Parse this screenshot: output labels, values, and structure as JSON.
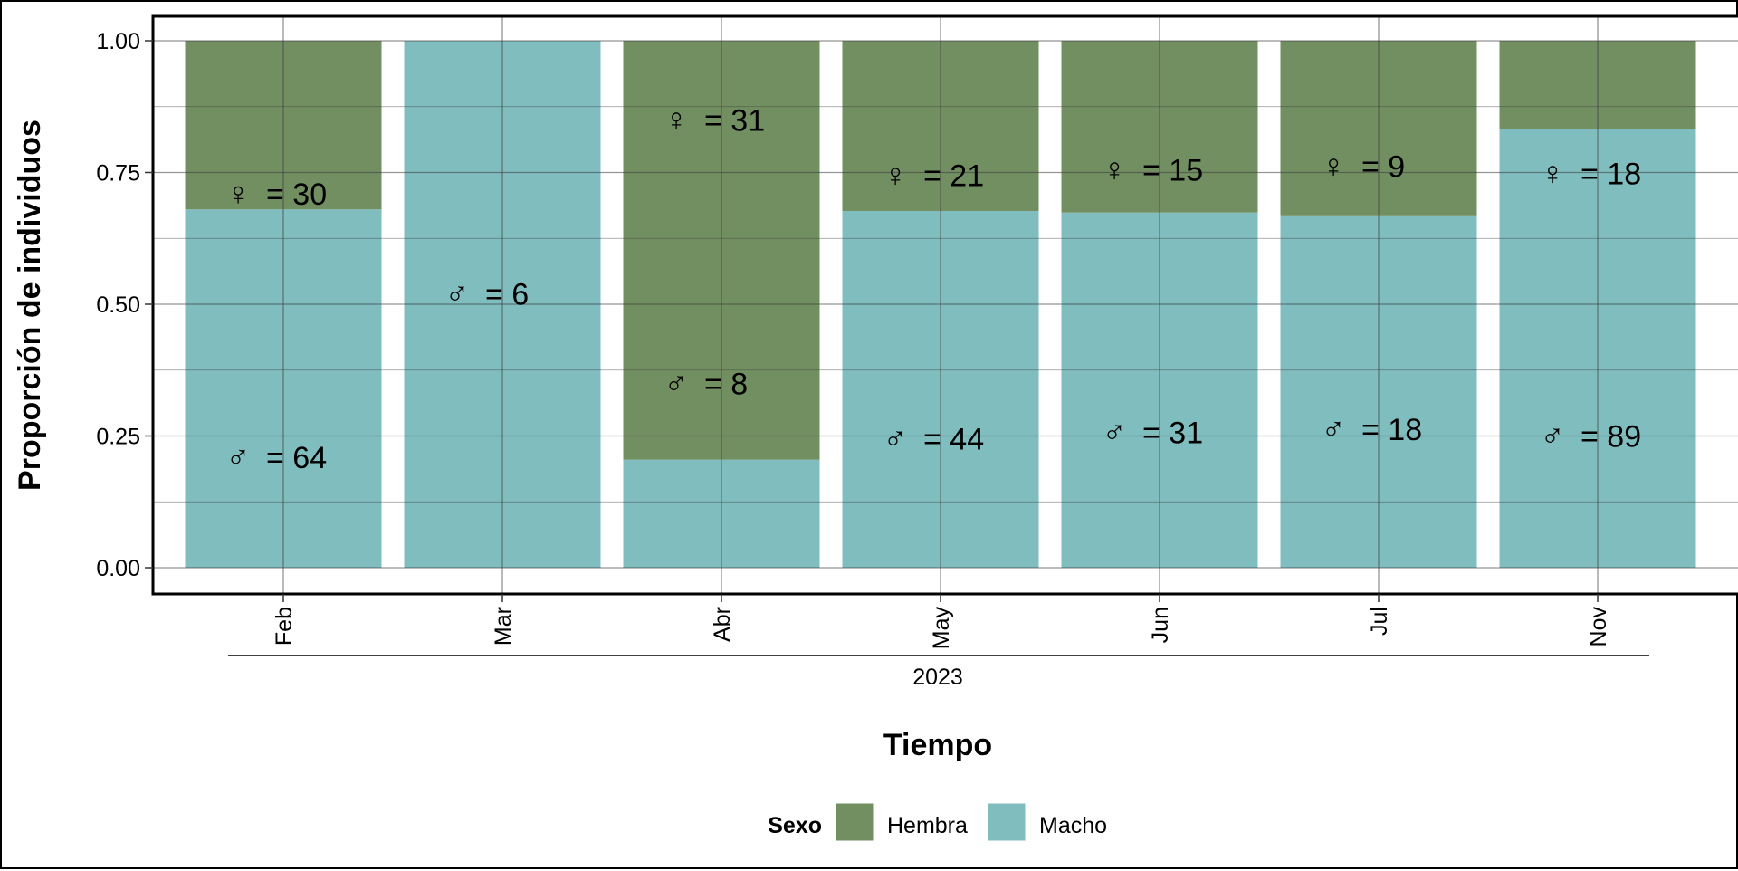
{
  "chart_data": {
    "type": "bar",
    "stacked": true,
    "normalized": true,
    "categories": [
      "Feb",
      "Mar",
      "Abr",
      "May",
      "Jun",
      "Jul",
      "Nov"
    ],
    "group_label": "2023",
    "series": [
      {
        "name": "Macho",
        "color": "#80BDBF",
        "values": [
          0.68,
          1.0,
          0.205,
          0.677,
          0.674,
          0.667,
          0.832
        ]
      },
      {
        "name": "Hembra",
        "color": "#728F62",
        "values": [
          0.32,
          0.0,
          0.795,
          0.323,
          0.326,
          0.333,
          0.168
        ]
      }
    ],
    "annotations": {
      "macho": [
        {
          "symbol": "♂",
          "text": "= 64",
          "y": 0.21
        },
        {
          "symbol": "♂",
          "text": "= 6",
          "y": 0.52
        },
        {
          "symbol": "♂",
          "text": "= 8",
          "y": 0.35
        },
        {
          "symbol": "♂",
          "text": "= 44",
          "y": 0.245
        },
        {
          "symbol": "♂",
          "text": "= 31",
          "y": 0.257
        },
        {
          "symbol": "♂",
          "text": "= 18",
          "y": 0.263
        },
        {
          "symbol": "♂",
          "text": "= 89",
          "y": 0.25
        }
      ],
      "hembra": [
        {
          "symbol": "♀",
          "text": "= 30",
          "y": 0.71
        },
        null,
        {
          "symbol": "♀",
          "text": "= 31",
          "y": 0.85
        },
        {
          "symbol": "♀",
          "text": "= 21",
          "y": 0.745
        },
        {
          "symbol": "♀",
          "text": "= 15",
          "y": 0.755
        },
        {
          "symbol": "♀",
          "text": "= 9",
          "y": 0.762
        },
        {
          "symbol": "♀",
          "text": "= 18",
          "y": 0.748
        }
      ]
    },
    "ylabel": "Proporción de individuos",
    "xlabel": "Tiempo",
    "ylim": [
      0,
      1
    ],
    "yticks": [
      "0.00",
      "0.25",
      "0.50",
      "0.75",
      "1.00"
    ],
    "grid": true,
    "legend": {
      "title": "Sexo",
      "position": "bottom",
      "items": [
        {
          "label": "Hembra",
          "color": "#728F62"
        },
        {
          "label": "Macho",
          "color": "#80BDBF"
        }
      ]
    }
  }
}
